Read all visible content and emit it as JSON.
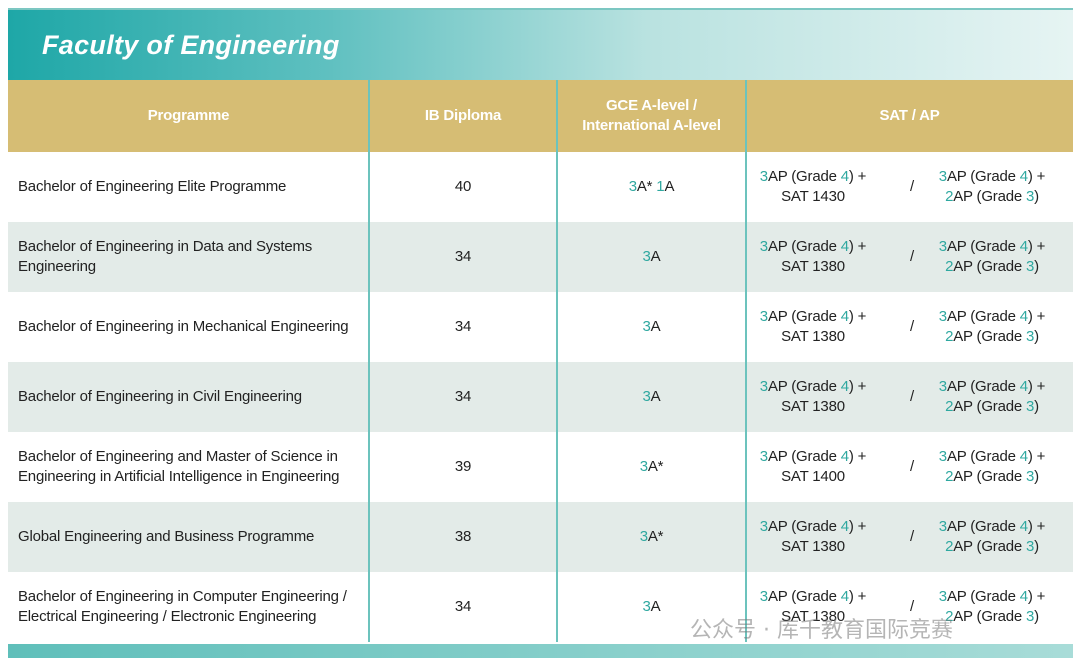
{
  "title": "Faculty of Engineering",
  "table": {
    "header": [
      "Programme",
      "IB Diploma",
      "GCE A-level / International A-level",
      "SAT / AP"
    ],
    "rows": [
      [
        "Bachelor of Engineering Elite Programme",
        40,
        "3A* 1A",
        {
          "option1": [
            "3AP (Grade 4) +",
            "SAT 1430"
          ],
          "separator": "/",
          "option2": [
            "3AP (Grade 4) +",
            "2AP (Grade 3)"
          ]
        }
      ],
      [
        "Bachelor of Engineering in Data and Systems Engineering",
        34,
        "3A",
        {
          "option1": [
            "3AP (Grade 4) +",
            "SAT 1380"
          ],
          "separator": "/",
          "option2": [
            "3AP (Grade 4) +",
            "2AP (Grade 3)"
          ]
        }
      ],
      [
        "Bachelor of Engineering in Mechanical Engineering",
        34,
        "3A",
        {
          "option1": [
            "3AP (Grade 4) +",
            "SAT 1380"
          ],
          "separator": "/",
          "option2": [
            "3AP (Grade 4) +",
            "2AP (Grade 3)"
          ]
        }
      ],
      [
        "Bachelor of Engineering in Civil Engineering",
        34,
        "3A",
        {
          "option1": [
            "3AP (Grade 4) +",
            "SAT 1380"
          ],
          "separator": "/",
          "option2": [
            "3AP (Grade 4) +",
            "2AP (Grade 3)"
          ]
        }
      ],
      [
        "Bachelor of Engineering and Master of Science in Engineering in Artificial Intelligence in Engineering",
        39,
        "3A*",
        {
          "option1": [
            "3AP (Grade 4) +",
            "SAT 1400"
          ],
          "separator": "/",
          "option2": [
            "3AP (Grade 4) +",
            "2AP (Grade 3)"
          ]
        }
      ],
      [
        "Global Engineering and Business Programme",
        38,
        "3A*",
        {
          "option1": [
            "3AP (Grade 4) +",
            "SAT 1380"
          ],
          "separator": "/",
          "option2": [
            "3AP (Grade 4) +",
            "2AP (Grade 3)"
          ]
        }
      ],
      [
        "Bachelor of Engineering in Computer Engineering / Electrical Engineering / Electronic Engineering",
        34,
        "3A",
        {
          "option1": [
            "3AP (Grade 4) +",
            "SAT 1380"
          ],
          "separator": "/",
          "option2": [
            "3AP (Grade 4) +",
            "2AP (Grade 3)"
          ]
        }
      ]
    ]
  },
  "watermark": "公众号 · 库千教育国际竞赛"
}
